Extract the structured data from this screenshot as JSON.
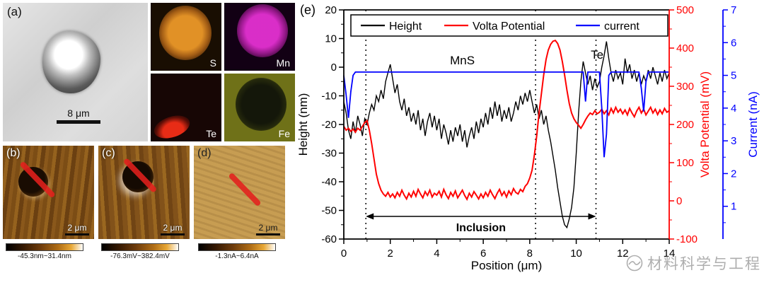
{
  "panels": {
    "a": {
      "label": "(a)",
      "scalebar": "8 μm"
    },
    "eds": {
      "s": "S",
      "mn": "Mn",
      "te": "Te",
      "fe": "Fe"
    },
    "b": {
      "label": "(b)",
      "scalebar": "2 μm",
      "range": "-45.3nm~31.4nm"
    },
    "c": {
      "label": "(c)",
      "scalebar": "2 μm",
      "range": "-76.3mV~382.4mV"
    },
    "d": {
      "label": "(d)",
      "scalebar": "2 μm",
      "range": "-1.3nA~6.4nA"
    },
    "e_label": "(e)"
  },
  "watermark": {
    "text": "材料科学与工程"
  },
  "chart_data": {
    "type": "line",
    "xlabel": "Position (μm)",
    "xlim": [
      0,
      14
    ],
    "x_ticks": [
      0,
      2,
      4,
      6,
      8,
      10,
      12,
      14
    ],
    "x_start": 0,
    "x_step": 0.1,
    "axes": {
      "left": {
        "label": "Height (nm)",
        "lim": [
          -60,
          20
        ],
        "ticks": [
          20,
          10,
          0,
          -10,
          -20,
          -30,
          -40,
          -50,
          -60
        ],
        "color": "#000000"
      },
      "right": {
        "label": "Volta Potential (mV)",
        "lim": [
          -100,
          500
        ],
        "ticks": [
          500,
          400,
          300,
          200,
          100,
          0,
          -100
        ],
        "color": "#ff0000"
      },
      "far_right": {
        "label": "Current (nA)",
        "lim": [
          0,
          7
        ],
        "ticks": [
          7,
          6,
          5,
          4,
          3,
          2,
          1
        ],
        "color": "#0000ff"
      }
    },
    "legend": [
      {
        "name": "Height",
        "color": "#000000"
      },
      {
        "name": "Volta Potential",
        "color": "#ff0000"
      },
      {
        "name": "current",
        "color": "#0000ff"
      }
    ],
    "annotations": {
      "mns_label": "MnS",
      "mns_x": 5.1,
      "mns_y": 1,
      "te_label": "Te",
      "te_x": 10.9,
      "te_y": 3,
      "inclusion_label": "Inclusion",
      "dotted_lines_x": [
        0.95,
        8.25,
        10.85
      ],
      "inclusion_span": [
        0.95,
        10.85
      ]
    },
    "series": [
      {
        "name": "Height",
        "axis": "left",
        "color": "#000000",
        "width": 1.4,
        "y": [
          -12,
          -16,
          -22,
          -25,
          -19,
          -23,
          -17,
          -20,
          -24,
          -18,
          -20,
          -16,
          -13,
          -15,
          -10,
          -12,
          -8,
          -11,
          -5,
          -2,
          1,
          -4,
          -9,
          -6,
          -12,
          -15,
          -11,
          -17,
          -14,
          -19,
          -16,
          -20,
          -15,
          -22,
          -18,
          -24,
          -19,
          -16,
          -21,
          -17,
          -22,
          -18,
          -25,
          -20,
          -23,
          -27,
          -22,
          -26,
          -21,
          -24,
          -20,
          -26,
          -22,
          -28,
          -24,
          -21,
          -25,
          -19,
          -23,
          -18,
          -21,
          -16,
          -20,
          -14,
          -18,
          -12,
          -17,
          -13,
          -19,
          -15,
          -18,
          -14,
          -19,
          -16,
          -12,
          -15,
          -10,
          -13,
          -9,
          -12,
          -8,
          -12,
          -16,
          -13,
          -18,
          -15,
          -20,
          -17,
          -22,
          -26,
          -31,
          -36,
          -42,
          -47,
          -52,
          -55,
          -56,
          -53,
          -49,
          -42,
          -30,
          -16,
          -5,
          2,
          -2,
          -6,
          -3,
          -8,
          -4,
          -7,
          -5,
          0,
          4,
          9,
          3,
          -2,
          -5,
          -1,
          -4,
          -2,
          -6,
          3,
          -2,
          1,
          -4,
          -1,
          -5,
          -2,
          -6,
          -3,
          -5,
          -1,
          -4,
          0,
          -3,
          -6,
          -2,
          -5,
          -1,
          -4,
          -2
        ]
      },
      {
        "name": "Volta Potential",
        "axis": "right",
        "color": "#ff0000",
        "width": 2,
        "y": [
          195,
          185,
          190,
          182,
          188,
          180,
          190,
          185,
          195,
          205,
          210,
          185,
          150,
          110,
          70,
          45,
          28,
          18,
          12,
          22,
          10,
          18,
          8,
          22,
          12,
          28,
          15,
          5,
          20,
          10,
          25,
          12,
          30,
          18,
          8,
          24,
          14,
          28,
          10,
          20,
          15,
          25,
          10,
          30,
          16,
          6,
          22,
          12,
          26,
          8,
          18,
          28,
          14,
          4,
          20,
          10,
          24,
          15,
          5,
          18,
          8,
          22,
          12,
          28,
          16,
          6,
          20,
          30,
          14,
          24,
          10,
          26,
          16,
          32,
          22,
          18,
          30,
          24,
          38,
          45,
          60,
          80,
          120,
          170,
          230,
          280,
          330,
          370,
          395,
          410,
          418,
          420,
          412,
          395,
          365,
          330,
          290,
          255,
          230,
          215,
          205,
          198,
          190,
          200,
          212,
          222,
          230,
          226,
          236,
          228,
          232,
          240,
          228,
          236,
          225,
          242,
          230,
          245,
          232,
          240,
          228,
          238,
          225,
          242,
          230,
          220,
          235,
          245,
          230,
          240,
          225,
          235,
          245,
          230,
          240,
          226,
          238,
          228,
          242,
          232,
          236
        ]
      },
      {
        "name": "current",
        "axis": "far_right",
        "color": "#0000ff",
        "width": 1.8,
        "y": [
          5.0,
          4.4,
          3.7,
          4.5,
          5.0,
          5.1,
          5.1,
          5.1,
          5.1,
          5.1,
          5.1,
          5.1,
          5.1,
          5.1,
          5.1,
          5.1,
          5.1,
          5.1,
          5.1,
          5.1,
          5.1,
          5.1,
          5.1,
          5.1,
          5.1,
          5.1,
          5.1,
          5.1,
          5.1,
          5.1,
          5.1,
          5.1,
          5.1,
          5.1,
          5.1,
          5.1,
          5.1,
          5.1,
          5.1,
          5.1,
          5.1,
          5.1,
          5.1,
          5.1,
          5.1,
          5.1,
          5.1,
          5.1,
          5.1,
          5.1,
          5.1,
          5.1,
          5.1,
          5.1,
          5.1,
          5.1,
          5.1,
          5.1,
          5.1,
          5.1,
          5.1,
          5.1,
          5.1,
          5.1,
          5.1,
          5.1,
          5.1,
          5.1,
          5.1,
          5.1,
          5.1,
          5.1,
          5.1,
          5.1,
          5.1,
          5.1,
          5.1,
          5.1,
          5.1,
          5.1,
          5.1,
          5.1,
          5.1,
          5.1,
          5.1,
          5.1,
          5.1,
          5.1,
          5.1,
          5.1,
          5.1,
          5.1,
          5.1,
          5.1,
          5.1,
          5.1,
          5.1,
          5.1,
          5.1,
          5.1,
          5.1,
          5.1,
          5.1,
          5.1,
          4.2,
          5.1,
          5.1,
          5.1,
          5.1,
          5.1,
          5.1,
          4.0,
          2.5,
          3.2,
          5.0,
          5.1,
          5.1,
          5.1,
          5.1,
          5.1,
          5.1,
          5.1,
          5.1,
          5.1,
          5.1,
          5.1,
          5.1,
          5.1,
          4.6,
          3.9,
          4.8,
          5.1,
          5.1,
          5.1,
          5.1,
          5.1,
          5.1,
          5.1,
          5.1,
          5.1,
          5.1
        ]
      }
    ]
  }
}
